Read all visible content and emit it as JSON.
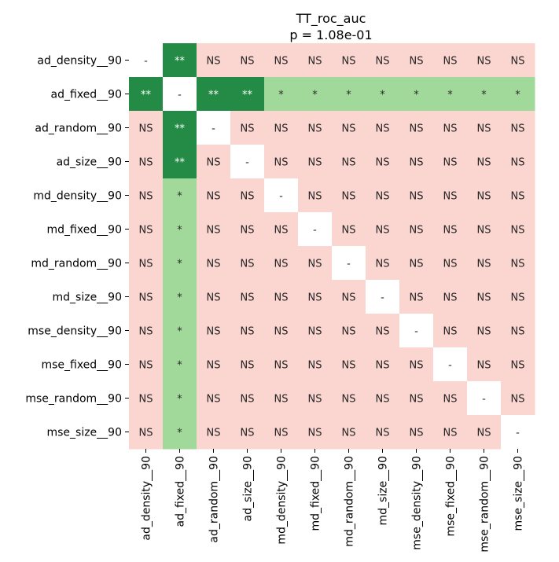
{
  "chart_data": {
    "type": "heatmap",
    "title": "TT_roc_auc",
    "subtitle": "p = 1.08e-01",
    "rows": [
      "ad_density__90",
      "ad_fixed__90",
      "ad_random__90",
      "ad_size__90",
      "md_density__90",
      "md_fixed__90",
      "md_random__90",
      "md_size__90",
      "mse_density__90",
      "mse_fixed__90",
      "mse_random__90",
      "mse_size__90"
    ],
    "columns": [
      "ad_density__90",
      "ad_fixed__90",
      "ad_random__90",
      "ad_size__90",
      "md_density__90",
      "md_fixed__90",
      "md_random__90",
      "md_size__90",
      "mse_density__90",
      "mse_fixed__90",
      "mse_random__90",
      "mse_size__90"
    ],
    "values": [
      [
        "-",
        "**",
        "NS",
        "NS",
        "NS",
        "NS",
        "NS",
        "NS",
        "NS",
        "NS",
        "NS",
        "NS"
      ],
      [
        "**",
        "-",
        "**",
        "**",
        "*",
        "*",
        "*",
        "*",
        "*",
        "*",
        "*",
        "*"
      ],
      [
        "NS",
        "**",
        "-",
        "NS",
        "NS",
        "NS",
        "NS",
        "NS",
        "NS",
        "NS",
        "NS",
        "NS"
      ],
      [
        "NS",
        "**",
        "NS",
        "-",
        "NS",
        "NS",
        "NS",
        "NS",
        "NS",
        "NS",
        "NS",
        "NS"
      ],
      [
        "NS",
        "*",
        "NS",
        "NS",
        "-",
        "NS",
        "NS",
        "NS",
        "NS",
        "NS",
        "NS",
        "NS"
      ],
      [
        "NS",
        "*",
        "NS",
        "NS",
        "NS",
        "-",
        "NS",
        "NS",
        "NS",
        "NS",
        "NS",
        "NS"
      ],
      [
        "NS",
        "*",
        "NS",
        "NS",
        "NS",
        "NS",
        "-",
        "NS",
        "NS",
        "NS",
        "NS",
        "NS"
      ],
      [
        "NS",
        "*",
        "NS",
        "NS",
        "NS",
        "NS",
        "NS",
        "-",
        "NS",
        "NS",
        "NS",
        "NS"
      ],
      [
        "NS",
        "*",
        "NS",
        "NS",
        "NS",
        "NS",
        "NS",
        "NS",
        "-",
        "NS",
        "NS",
        "NS"
      ],
      [
        "NS",
        "*",
        "NS",
        "NS",
        "NS",
        "NS",
        "NS",
        "NS",
        "NS",
        "-",
        "NS",
        "NS"
      ],
      [
        "NS",
        "*",
        "NS",
        "NS",
        "NS",
        "NS",
        "NS",
        "NS",
        "NS",
        "NS",
        "-",
        "NS"
      ],
      [
        "NS",
        "*",
        "NS",
        "NS",
        "NS",
        "NS",
        "NS",
        "NS",
        "NS",
        "NS",
        "NS",
        "-"
      ]
    ],
    "colors": {
      "**": "#238b45",
      "*": "#a1d99b",
      "NS": "#fbd5cf",
      "-": "#ffffff"
    },
    "text_colors": {
      "**": "#ffffff",
      "*": "#262626",
      "NS": "#262626",
      "-": "#262626"
    }
  }
}
